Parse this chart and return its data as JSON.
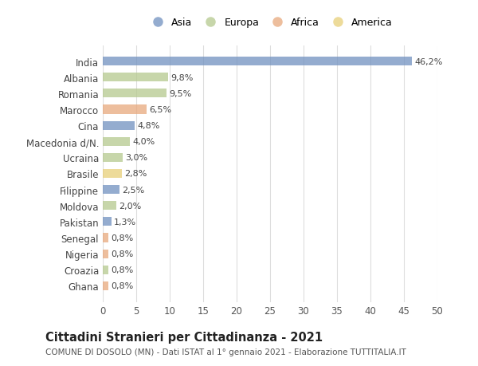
{
  "countries": [
    "India",
    "Albania",
    "Romania",
    "Marocco",
    "Cina",
    "Macedonia d/N.",
    "Ucraina",
    "Brasile",
    "Filippine",
    "Moldova",
    "Pakistan",
    "Senegal",
    "Nigeria",
    "Croazia",
    "Ghana"
  ],
  "values": [
    46.2,
    9.8,
    9.5,
    6.5,
    4.8,
    4.0,
    3.0,
    2.8,
    2.5,
    2.0,
    1.3,
    0.8,
    0.8,
    0.8,
    0.8
  ],
  "labels": [
    "46,2%",
    "9,8%",
    "9,5%",
    "6,5%",
    "4,8%",
    "4,0%",
    "3,0%",
    "2,8%",
    "2,5%",
    "2,0%",
    "1,3%",
    "0,8%",
    "0,8%",
    "0,8%",
    "0,8%"
  ],
  "continents": [
    "Asia",
    "Europa",
    "Europa",
    "Africa",
    "Asia",
    "Europa",
    "Europa",
    "America",
    "Asia",
    "Europa",
    "Asia",
    "Africa",
    "Africa",
    "Europa",
    "Africa"
  ],
  "continent_colors": {
    "Asia": "#7191c0",
    "Europa": "#b5c98e",
    "Africa": "#e8a87c",
    "America": "#e8cf78"
  },
  "legend_order": [
    "Asia",
    "Europa",
    "Africa",
    "America"
  ],
  "title": "Cittadini Stranieri per Cittadinanza - 2021",
  "subtitle": "COMUNE DI DOSOLO (MN) - Dati ISTAT al 1° gennaio 2021 - Elaborazione TUTTITALIA.IT",
  "xlim": [
    0,
    50
  ],
  "xticks": [
    0,
    5,
    10,
    15,
    20,
    25,
    30,
    35,
    40,
    45,
    50
  ],
  "background_color": "#ffffff",
  "grid_color": "#dddddd",
  "bar_height": 0.55,
  "label_fontsize": 8.0,
  "title_fontsize": 10.5,
  "subtitle_fontsize": 7.5,
  "tick_label_fontsize": 8.5,
  "axis_label_fontsize": 8.5,
  "legend_fontsize": 9.0,
  "alpha": 0.75
}
